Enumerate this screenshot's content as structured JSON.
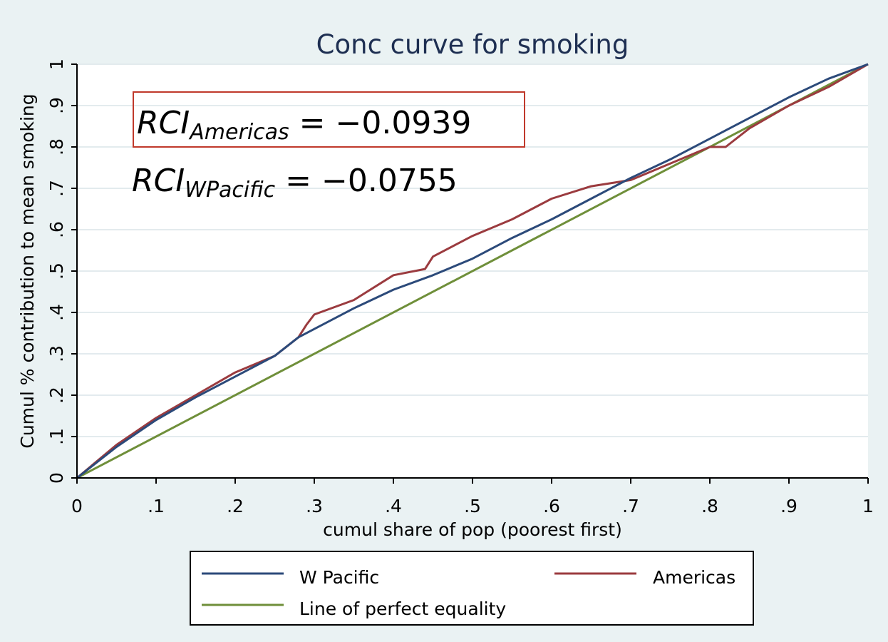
{
  "chart_data": {
    "type": "line",
    "title": "Conc curve for smoking",
    "xlabel": "cumul share of pop (poorest first)",
    "ylabel": "Cumul % contribution to mean smoking",
    "xlim": [
      0,
      1
    ],
    "ylim": [
      0,
      1
    ],
    "x_ticks": [
      "0",
      ".1",
      ".2",
      ".3",
      ".4",
      ".5",
      ".6",
      ".7",
      ".8",
      ".9",
      "1"
    ],
    "y_ticks": [
      "0",
      ".1",
      ".2",
      ".3",
      ".4",
      ".5",
      ".6",
      ".7",
      ".8",
      ".9",
      "1"
    ],
    "grid": true,
    "legend_position": "bottom",
    "annotations": {
      "americas": {
        "symbol": "RCI",
        "subscript": "Americas",
        "value": "= −0.0939"
      },
      "wpacific": {
        "symbol": "RCI",
        "subscript": "WPacific",
        "value": "= −0.0755"
      }
    },
    "series": [
      {
        "name": "W Pacific",
        "color": "#2c4a7a",
        "x": [
          0,
          0.05,
          0.1,
          0.15,
          0.2,
          0.25,
          0.28,
          0.3,
          0.35,
          0.4,
          0.45,
          0.5,
          0.55,
          0.6,
          0.65,
          0.7,
          0.75,
          0.8,
          0.85,
          0.9,
          0.95,
          1
        ],
        "y": [
          0,
          0.075,
          0.14,
          0.195,
          0.245,
          0.295,
          0.34,
          0.36,
          0.41,
          0.455,
          0.49,
          0.53,
          0.58,
          0.625,
          0.675,
          0.725,
          0.77,
          0.82,
          0.87,
          0.92,
          0.965,
          1
        ]
      },
      {
        "name": "Americas",
        "color": "#9b3b3f",
        "x": [
          0,
          0.05,
          0.1,
          0.15,
          0.2,
          0.25,
          0.28,
          0.29,
          0.3,
          0.35,
          0.4,
          0.44,
          0.45,
          0.5,
          0.55,
          0.6,
          0.65,
          0.7,
          0.75,
          0.8,
          0.82,
          0.85,
          0.9,
          0.95,
          1
        ],
        "y": [
          0,
          0.08,
          0.145,
          0.2,
          0.255,
          0.295,
          0.34,
          0.37,
          0.395,
          0.43,
          0.49,
          0.505,
          0.535,
          0.585,
          0.625,
          0.675,
          0.705,
          0.72,
          0.76,
          0.8,
          0.8,
          0.845,
          0.9,
          0.945,
          1
        ]
      },
      {
        "name": "Line of perfect equality",
        "color": "#6f8f3a",
        "x": [
          0,
          1
        ],
        "y": [
          0,
          1
        ]
      }
    ]
  }
}
